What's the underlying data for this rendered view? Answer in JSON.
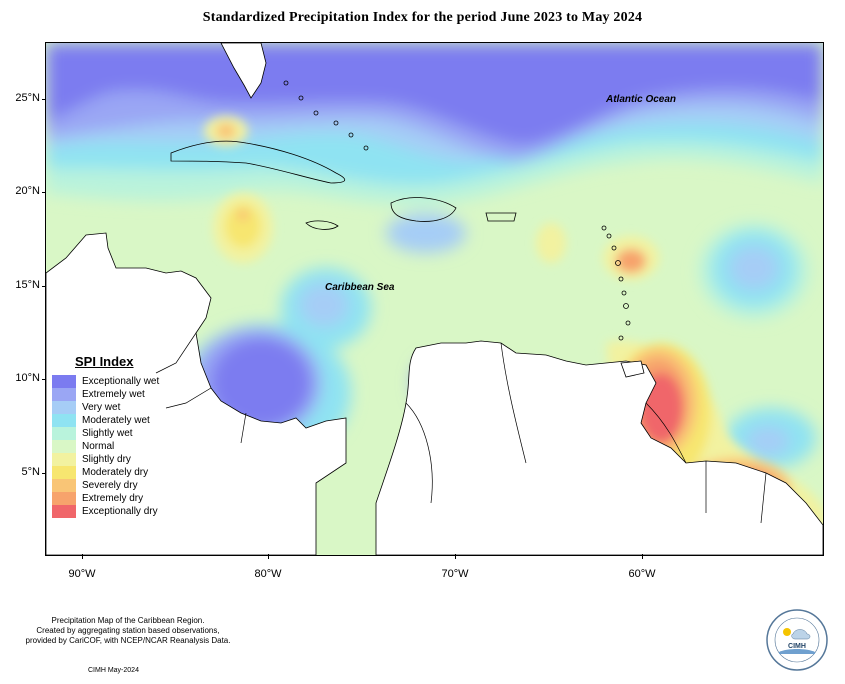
{
  "title": "Standardized Precipitation Index for the period June 2023 to May 2024",
  "map": {
    "labels": {
      "ocean": "Atlantic Ocean",
      "sea": "Caribbean Sea"
    },
    "lat_ticks": [
      "25°N",
      "20°N",
      "15°N",
      "10°N",
      "5°N"
    ],
    "lon_ticks": [
      "90°W",
      "80°W",
      "70°W",
      "60°W"
    ]
  },
  "legend": {
    "title": "SPI Index",
    "items": [
      {
        "label": "Exceptionally wet",
        "color": "#7b7bf0"
      },
      {
        "label": "Extremely wet",
        "color": "#9aa6f4"
      },
      {
        "label": "Very wet",
        "color": "#a6cdf6"
      },
      {
        "label": "Moderately wet",
        "color": "#8fe3f2"
      },
      {
        "label": "Slightly wet",
        "color": "#b9f3dc"
      },
      {
        "label": "Normal",
        "color": "#d9f7c6"
      },
      {
        "label": "Slightly dry",
        "color": "#f2f2a0"
      },
      {
        "label": "Moderately dry",
        "color": "#f7e670"
      },
      {
        "label": "Severely dry",
        "color": "#f9c576"
      },
      {
        "label": "Extremely dry",
        "color": "#f7a36c"
      },
      {
        "label": "Exceptionally dry",
        "color": "#f0666a"
      }
    ]
  },
  "credit": {
    "line1": "Precipitation Map of the Caribbean Region.",
    "line2": "Created by aggregating station based observations,",
    "line3": "provided by CariCOF, with NCEP/NCAR Reanalysis Data.",
    "date": "CIMH May-2024"
  },
  "logo": {
    "text": "CIMH"
  }
}
